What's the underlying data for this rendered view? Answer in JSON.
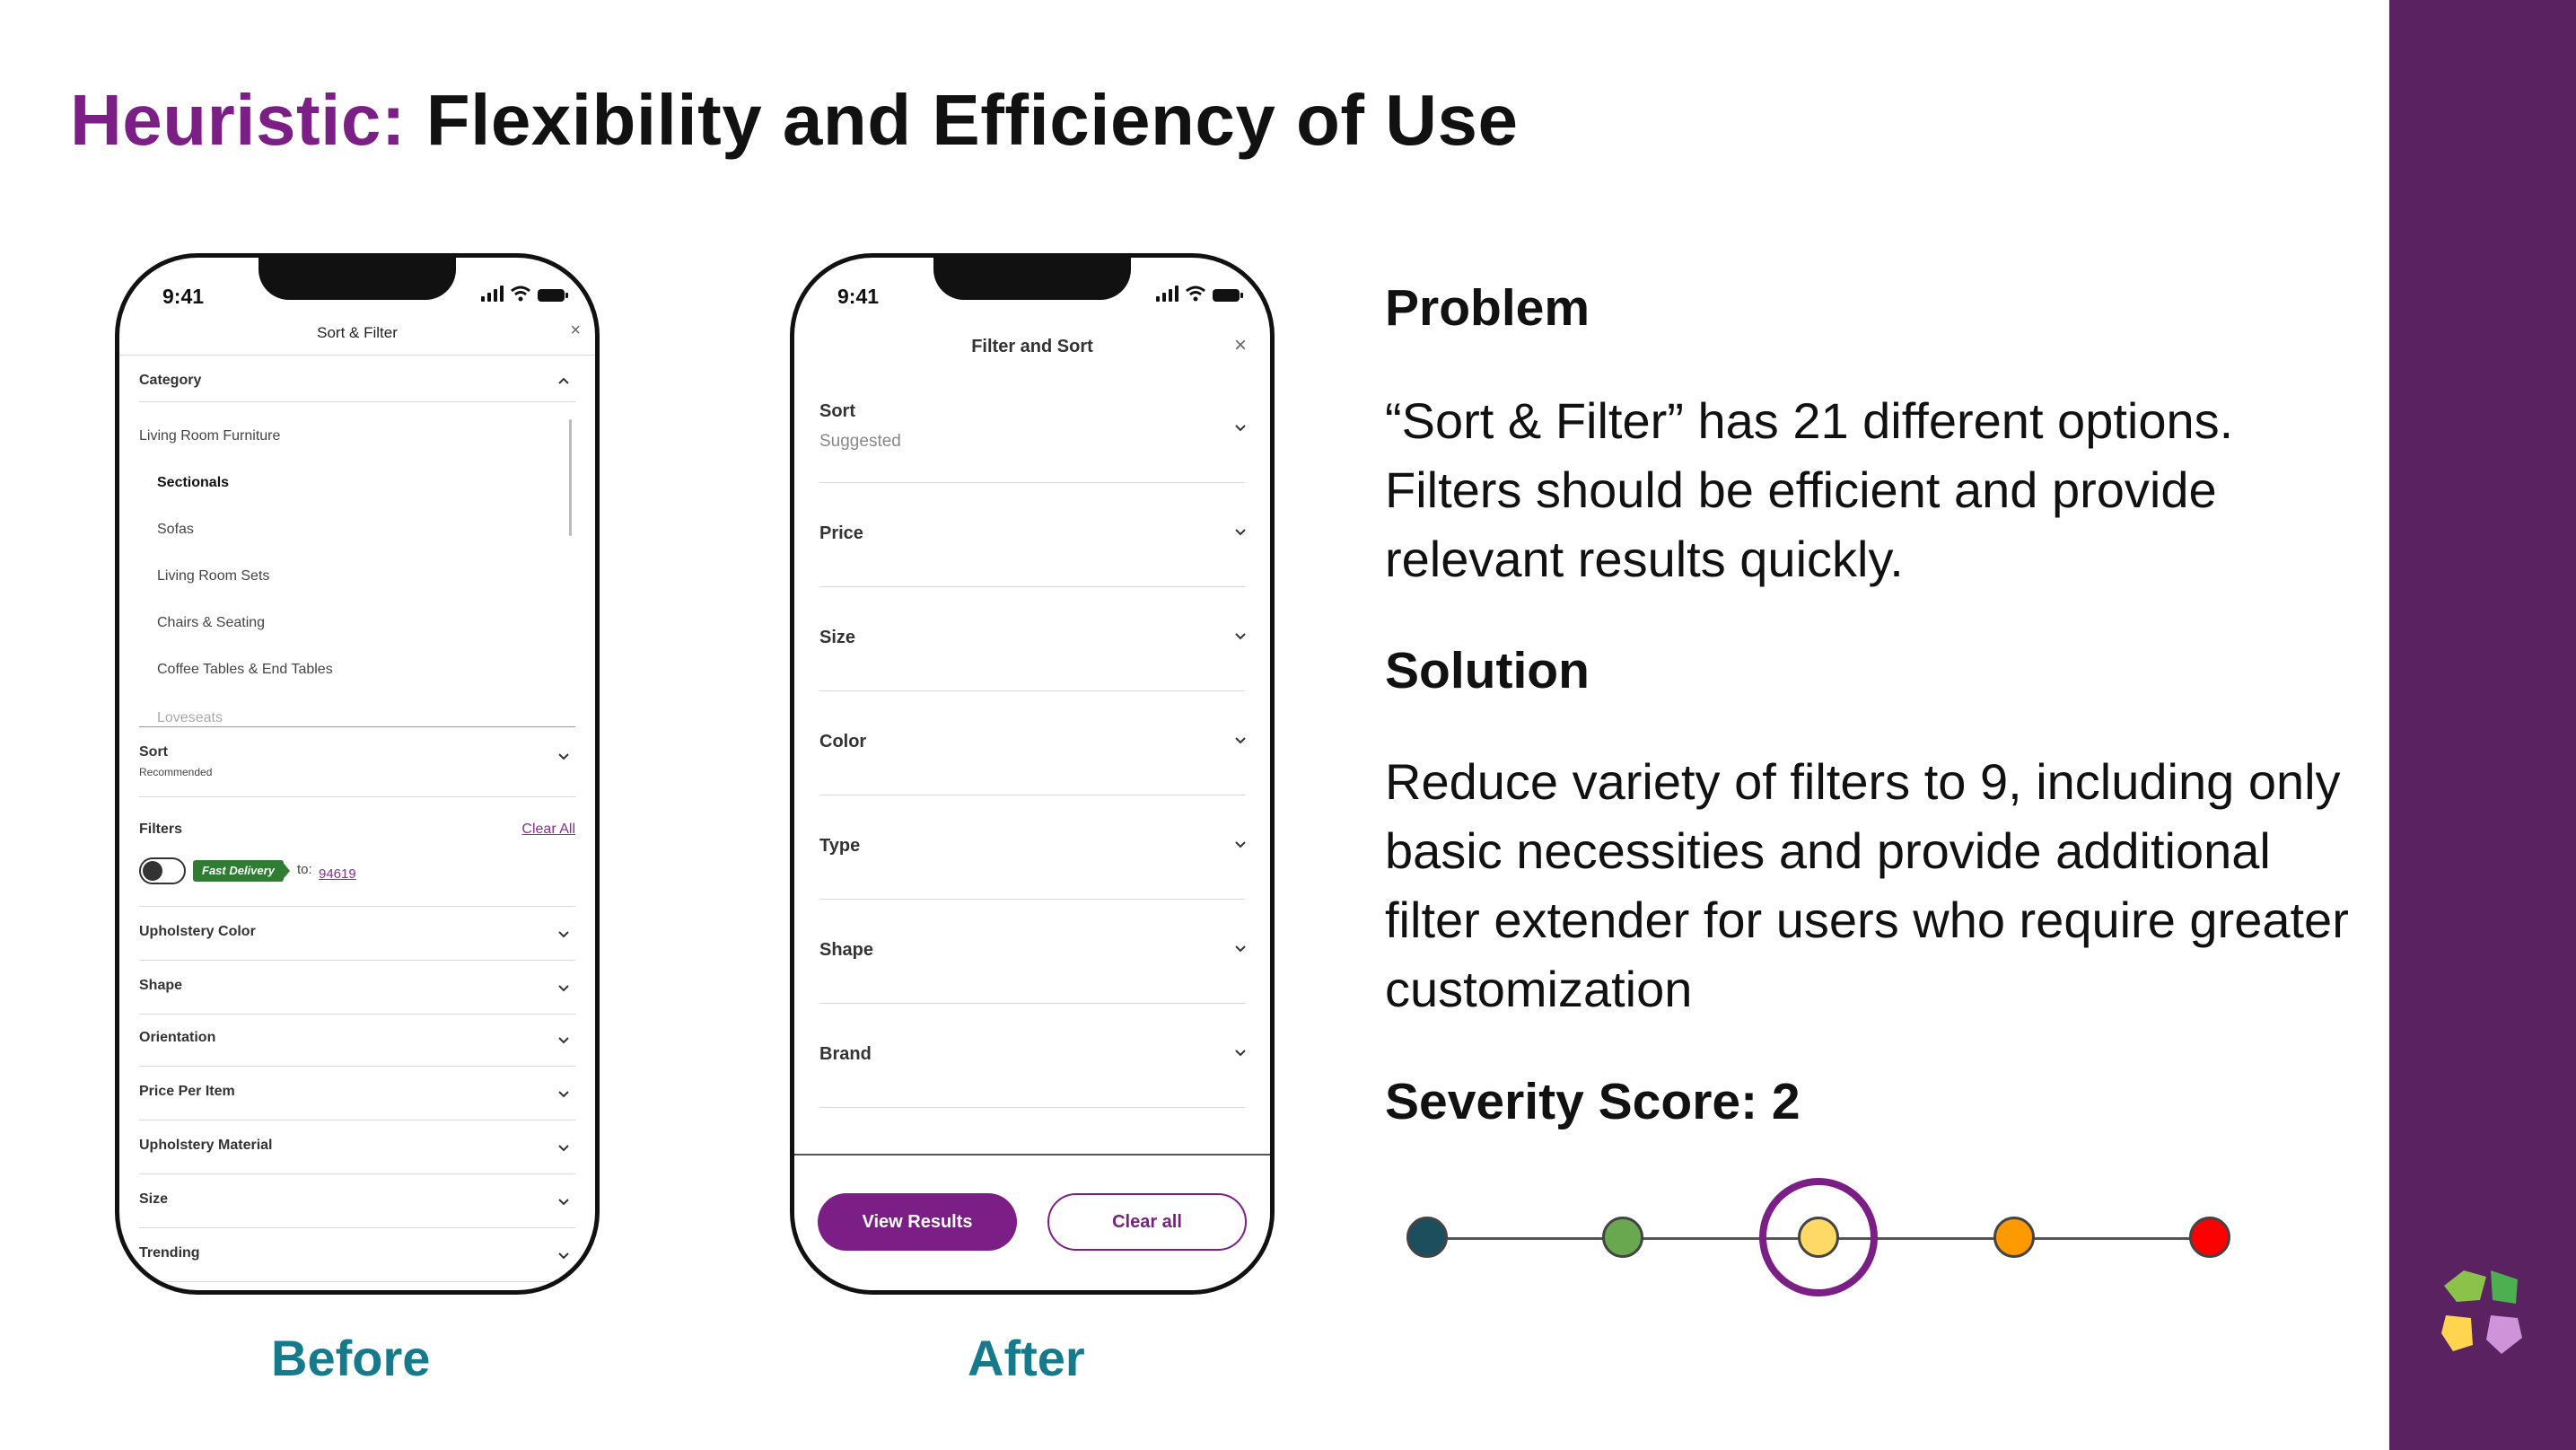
{
  "title": {
    "heuristic": "Heuristic:",
    "rest": "Flexibility and Efficiency of Use"
  },
  "before_phone": {
    "time": "9:41",
    "header": "Sort & Filter",
    "close": "×",
    "category_label": "Category",
    "category_items": [
      {
        "label": "Living Room Furniture"
      },
      {
        "label": "Sectionals"
      },
      {
        "label": "Sofas"
      },
      {
        "label": "Living Room Sets"
      },
      {
        "label": "Chairs & Seating"
      },
      {
        "label": "Coffee Tables & End Tables"
      },
      {
        "label": "Loveseats"
      }
    ],
    "sort_label": "Sort",
    "sort_value": "Recommended",
    "filters_label": "Filters",
    "clear_all": "Clear All",
    "fast_delivery": "Fast Delivery",
    "to_text": "to:",
    "zip": "94619",
    "filter_rows": [
      {
        "label": "Upholstery Color"
      },
      {
        "label": "Shape"
      },
      {
        "label": "Orientation"
      },
      {
        "label": "Price Per Item"
      },
      {
        "label": "Upholstery Material"
      },
      {
        "label": "Size"
      },
      {
        "label": "Trending"
      }
    ]
  },
  "after_phone": {
    "time": "9:41",
    "header": "Filter and Sort",
    "close": "×",
    "sort_label": "Sort",
    "sort_value": "Suggested",
    "rows": [
      {
        "label": "Price"
      },
      {
        "label": "Size"
      },
      {
        "label": "Color"
      },
      {
        "label": "Type"
      },
      {
        "label": "Shape"
      },
      {
        "label": "Brand"
      }
    ],
    "view_results": "View Results",
    "clear_all": "Clear all"
  },
  "captions": {
    "before": "Before",
    "after": "After"
  },
  "problem": {
    "heading": "Problem",
    "text": "“Sort & Filter” has 21 different options. Filters should be efficient and provide relevant results quickly."
  },
  "solution": {
    "heading": "Solution",
    "text": "Reduce variety of filters to 9, including only basic necessities and provide additional filter extender for users who require greater customization"
  },
  "severity": {
    "heading": "Severity Score: 2",
    "score": 2,
    "levels": [
      {
        "color": "#1b4f5e"
      },
      {
        "color": "#6aa84f"
      },
      {
        "color": "#ffd966"
      },
      {
        "color": "#ff9900"
      },
      {
        "color": "#ff0000"
      }
    ]
  },
  "colors": {
    "accent": "#7b1f86",
    "sidebar": "#5a2260",
    "caption": "#157a8c"
  }
}
